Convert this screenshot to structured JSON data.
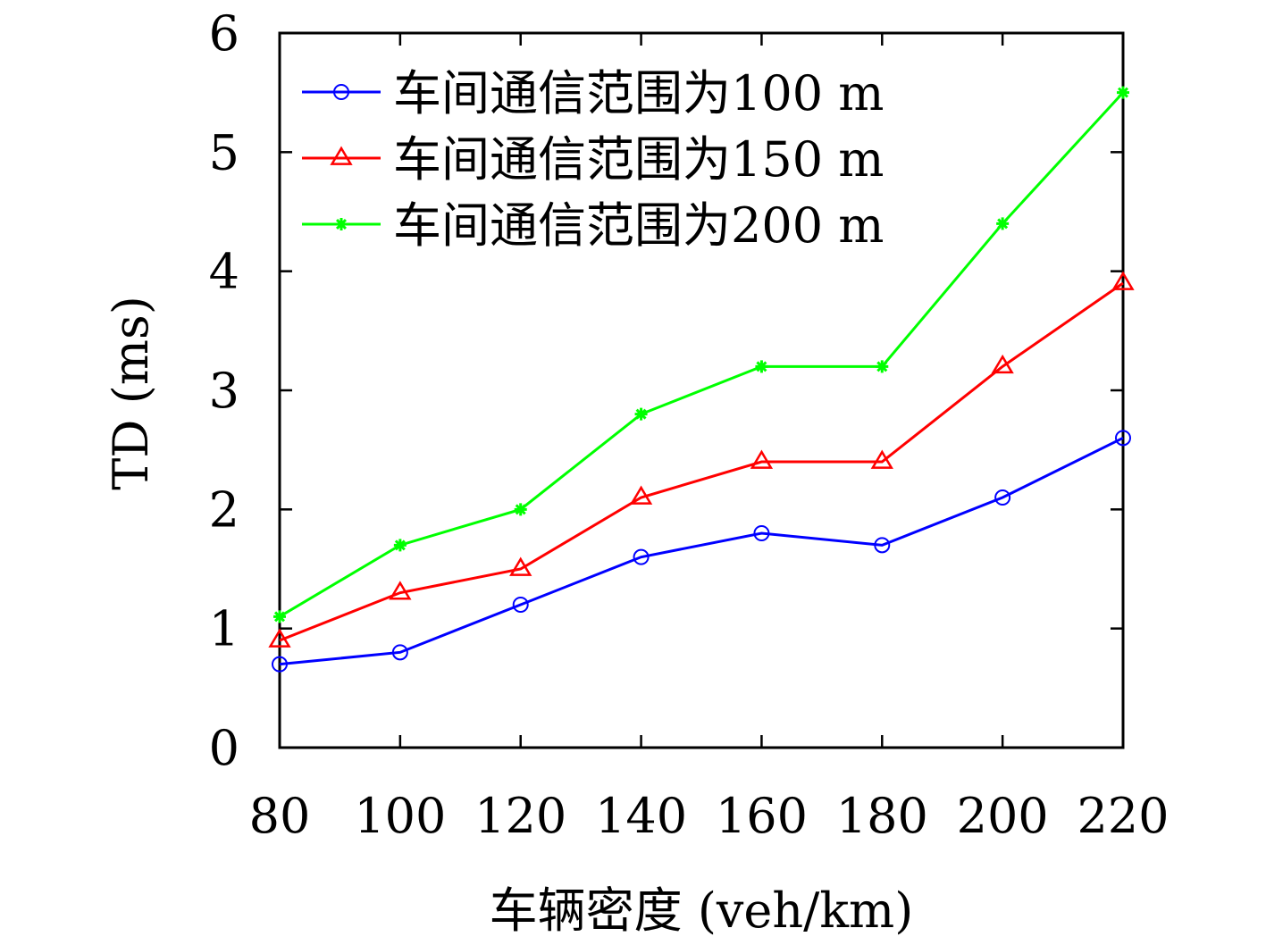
{
  "chart_data": {
    "type": "line",
    "title": "",
    "xlabel": "车辆密度 (veh/km)",
    "ylabel": "TD (ms)",
    "x": [
      80,
      100,
      120,
      140,
      160,
      180,
      200,
      220
    ],
    "x_ticks": [
      "80",
      "100",
      "120",
      "140",
      "160",
      "180",
      "200",
      "220"
    ],
    "y_ticks": [
      "0",
      "1",
      "2",
      "3",
      "4",
      "5",
      "6"
    ],
    "xlim": [
      80,
      220
    ],
    "ylim": [
      0,
      6
    ],
    "grid": false,
    "legend_position": "top-left",
    "series": [
      {
        "name": "车间通信范围为100 m",
        "color": "#0000ff",
        "marker": "circle",
        "values": [
          0.7,
          0.8,
          1.2,
          1.6,
          1.8,
          1.7,
          2.1,
          2.6
        ]
      },
      {
        "name": "车间通信范围为150 m",
        "color": "#ff0000",
        "marker": "triangle",
        "values": [
          0.9,
          1.3,
          1.5,
          2.1,
          2.4,
          2.4,
          3.2,
          3.9
        ]
      },
      {
        "name": "车间通信范围为200 m",
        "color": "#00ff00",
        "marker": "asterisk",
        "values": [
          1.1,
          1.7,
          2.0,
          2.8,
          3.2,
          3.2,
          4.4,
          5.5
        ]
      }
    ]
  }
}
